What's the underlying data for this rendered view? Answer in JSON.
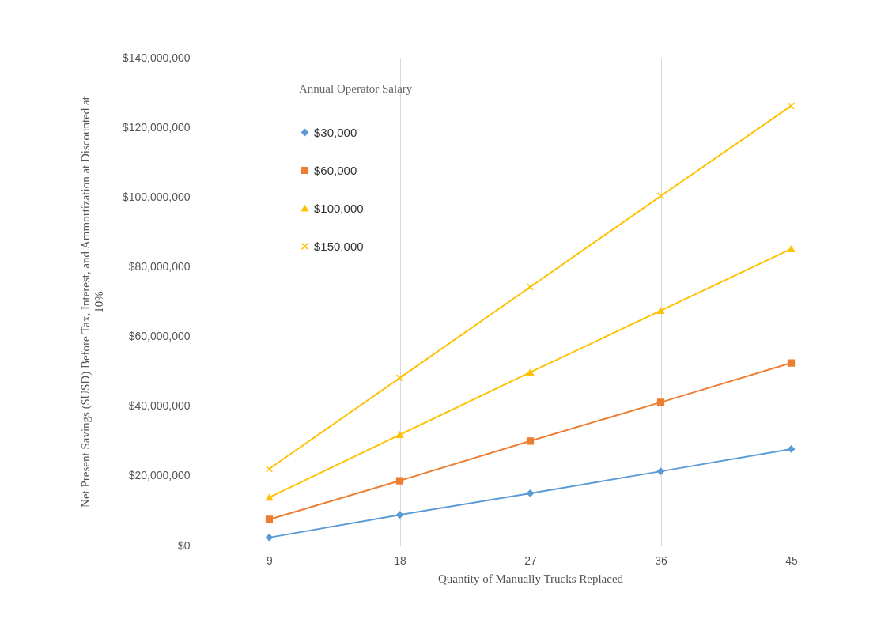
{
  "chart_data": {
    "type": "line",
    "xlabel": "Quantity of Manually Trucks Replaced",
    "ylabel": "Net Present Savings ($USD) Before Tax, Interest, and Ammortization at Discounted at 10%",
    "legend_title": "Annual  Operator Salary",
    "categories": [
      "9",
      "18",
      "27",
      "36",
      "45"
    ],
    "series": [
      {
        "name": "$30,000",
        "color": "#5b9bd5",
        "marker": "diamond",
        "values": [
          2300000.0,
          8800000.0,
          15000000.0,
          21300000.0,
          27700000.0
        ]
      },
      {
        "name": "$60,000",
        "color": "#ed7d31",
        "marker": "square",
        "values": [
          7500000.0,
          18600000.0,
          30000000.0,
          41100000.0,
          52400000.0
        ]
      },
      {
        "name": "$100,000",
        "color": "#ffc000",
        "marker": "triangle",
        "values": [
          13800000.0,
          31800000.0,
          49700000.0,
          67400000.0,
          85100000.0
        ]
      },
      {
        "name": "$150,000",
        "color": "#ffc000",
        "marker": "cross",
        "values": [
          22000000.0,
          48100000.0,
          74200000.0,
          100300000.0,
          126200000.0
        ]
      }
    ],
    "ylim": [
      0,
      140000000
    ],
    "yticks": [
      {
        "value": 0,
        "label": "$0"
      },
      {
        "value": 20000000,
        "label": "$20,000,000"
      },
      {
        "value": 40000000,
        "label": "$40,000,000"
      },
      {
        "value": 60000000,
        "label": "$60,000,000"
      },
      {
        "value": 80000000,
        "label": "$80,000,000"
      },
      {
        "value": 100000000,
        "label": "$100,000,000"
      },
      {
        "value": 120000000,
        "label": "$120,000,000"
      },
      {
        "value": 140000000,
        "label": "$140,000,000"
      }
    ],
    "grid": "x",
    "legend": "top left",
    "line_style": "solid"
  }
}
